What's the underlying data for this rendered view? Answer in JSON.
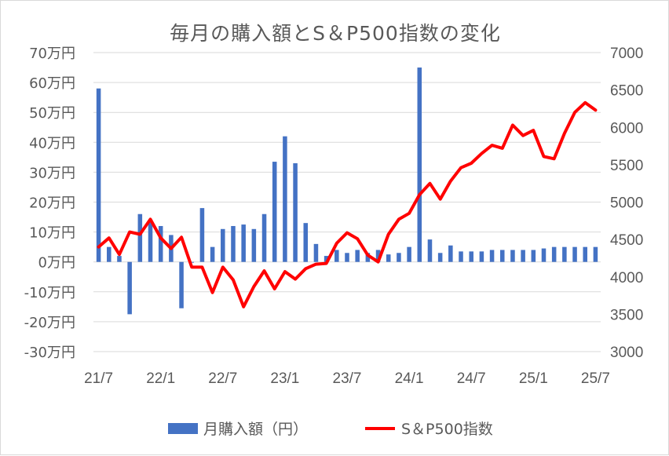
{
  "chart_data": {
    "type": "bar+line",
    "title": "毎月の購入額とS＆P500指数の変化",
    "x_tick_labels": [
      "21/7",
      "22/1",
      "22/7",
      "23/1",
      "23/7",
      "24/1",
      "24/7",
      "25/1",
      "25/7"
    ],
    "y_left": {
      "unit": "万円",
      "ylim": [
        -30,
        70
      ],
      "ticks": [
        70,
        60,
        50,
        40,
        30,
        20,
        10,
        0,
        -10,
        -20,
        -30
      ],
      "tick_labels": [
        "70万円",
        "60万円",
        "50万円",
        "40万円",
        "30万円",
        "20万円",
        "10万円",
        "0万円",
        "-10万円",
        "-20万円",
        "-30万円"
      ]
    },
    "y_right": {
      "ylim": [
        3000,
        7000
      ],
      "ticks": [
        7000,
        6500,
        6000,
        5500,
        5000,
        4500,
        4000,
        3500,
        3000
      ],
      "tick_labels": [
        "7000",
        "6500",
        "6000",
        "5500",
        "5000",
        "4500",
        "4000",
        "3500",
        "3000"
      ]
    },
    "months": [
      "21/7",
      "21/8",
      "21/9",
      "21/10",
      "21/11",
      "21/12",
      "22/1",
      "22/2",
      "22/3",
      "22/4",
      "22/5",
      "22/6",
      "22/7",
      "22/8",
      "22/9",
      "22/10",
      "22/11",
      "22/12",
      "23/1",
      "23/2",
      "23/3",
      "23/4",
      "23/5",
      "23/6",
      "23/7",
      "23/8",
      "23/9",
      "23/10",
      "23/11",
      "23/12",
      "24/1",
      "24/2",
      "24/3",
      "24/4",
      "24/5",
      "24/6",
      "24/7",
      "24/8",
      "24/9",
      "24/10",
      "24/11",
      "24/12",
      "25/1",
      "25/2",
      "25/3",
      "25/4",
      "25/5",
      "25/6",
      "25/7"
    ],
    "series": [
      {
        "name": "月購入額（円）",
        "type": "bar",
        "color": "#4472c4",
        "axis": "left",
        "values": [
          58,
          5,
          2,
          -17.5,
          16,
          14,
          12,
          9,
          -15.5,
          0,
          18,
          5,
          11,
          12,
          12.5,
          11,
          16,
          33.5,
          42,
          33,
          13,
          6,
          2,
          4,
          3,
          4,
          3,
          4,
          2.5,
          3,
          5,
          65,
          7.5,
          3,
          5.5,
          3.5,
          3.5,
          3.5,
          4,
          4,
          4,
          4,
          4,
          4.5,
          5,
          5,
          5,
          5,
          5
        ]
      },
      {
        "name": "S＆P500指数",
        "type": "line",
        "color": "#ff0000",
        "axis": "right",
        "values": [
          4400,
          4520,
          4300,
          4600,
          4570,
          4770,
          4520,
          4380,
          4530,
          4130,
          4130,
          3790,
          4130,
          3960,
          3600,
          3870,
          4080,
          3840,
          4070,
          3970,
          4110,
          4170,
          4180,
          4450,
          4590,
          4510,
          4290,
          4200,
          4570,
          4770,
          4850,
          5100,
          5250,
          5040,
          5280,
          5460,
          5520,
          5650,
          5760,
          5720,
          6030,
          5890,
          5960,
          5610,
          5580,
          5920,
          6200,
          6330,
          6230
        ]
      }
    ],
    "legend": {
      "placement": "bottom"
    },
    "grid": {
      "y": true,
      "x": false
    }
  }
}
